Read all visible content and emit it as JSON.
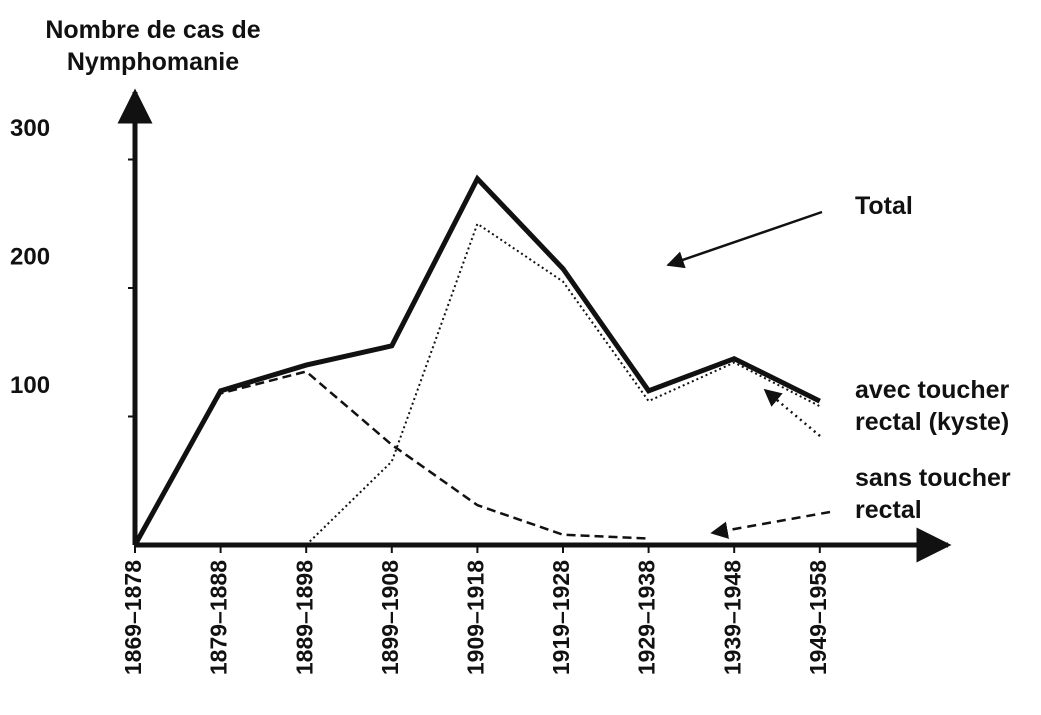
{
  "chart_data": {
    "type": "line",
    "y_label": "Nombre de cas de Nymphomanie",
    "categories": [
      "1869–1878",
      "1879–1888",
      "1889–1898",
      "1899–1908",
      "1909–1918",
      "1919–1928",
      "1929–1938",
      "1939–1948",
      "1949–1958"
    ],
    "series": [
      {
        "name": "Total",
        "color": "#111111",
        "style": "solid",
        "values": [
          0,
          120,
          140,
          155,
          285,
          215,
          120,
          145,
          112
        ]
      },
      {
        "name": "avec toucher rectal (kyste)",
        "color": "#111111",
        "style": "dotted",
        "values": [
          null,
          null,
          0,
          65,
          250,
          205,
          112,
          142,
          108
        ]
      },
      {
        "name": "sans toucher rectal",
        "color": "#111111",
        "style": "dashed",
        "values": [
          0,
          118,
          135,
          78,
          31,
          8,
          5,
          null,
          null
        ]
      }
    ],
    "ylim": [
      0,
      350
    ],
    "yticks": [
      100,
      200,
      300
    ],
    "grid": false
  }
}
